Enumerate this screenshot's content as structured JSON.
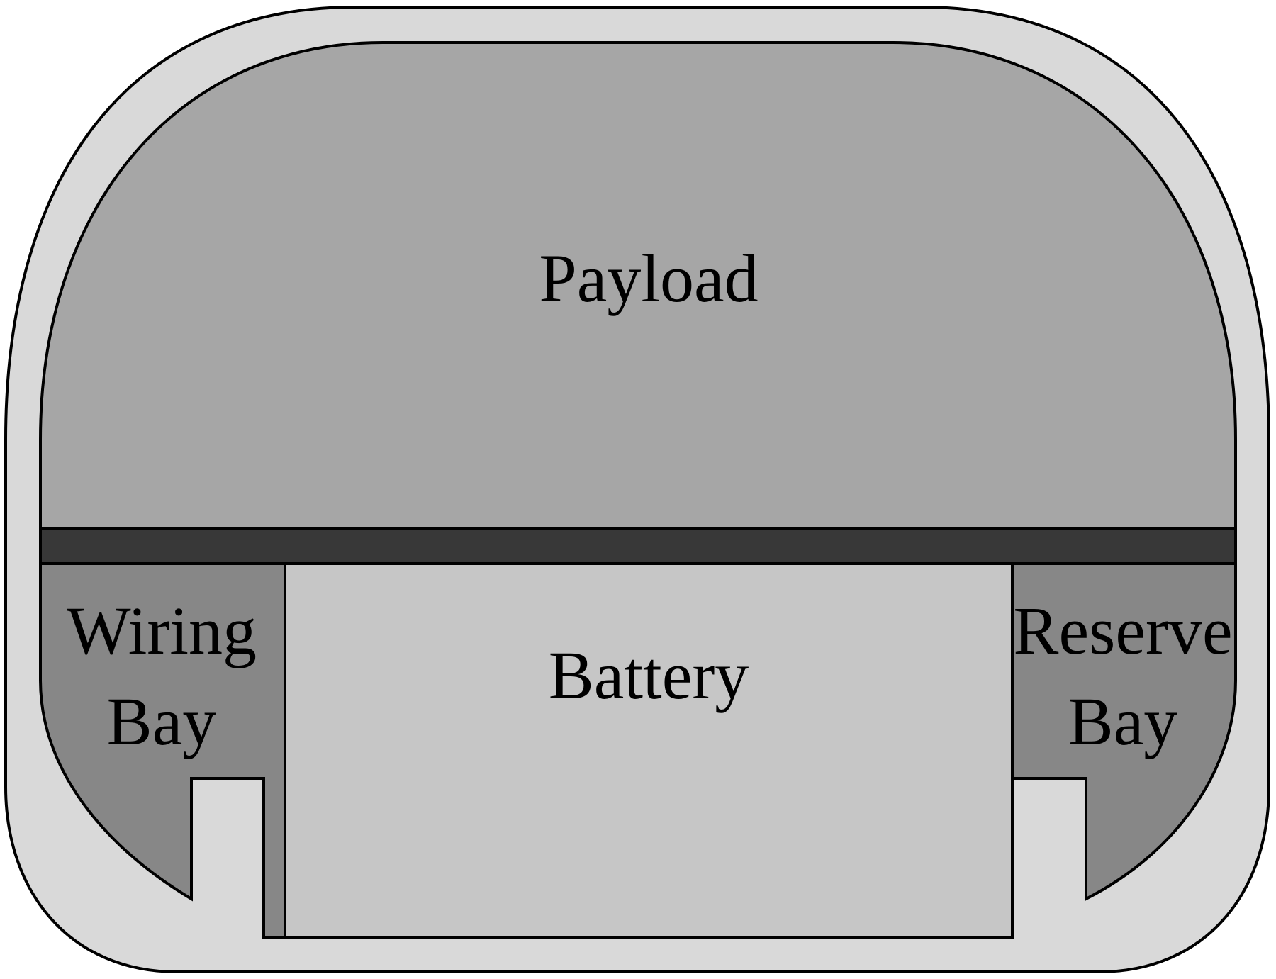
{
  "colors": {
    "hull": "#d9d9d9",
    "payload": "#a6a6a6",
    "divider": "#383838",
    "side_bay": "#878787",
    "battery": "#c6c6c6",
    "outline": "#000000"
  },
  "regions": {
    "payload": {
      "label": "Payload"
    },
    "battery": {
      "label": "Battery"
    },
    "wiring_bay": {
      "line1": "Wiring",
      "line2": "Bay"
    },
    "reserve_bay": {
      "line1": "Reserve",
      "line2": "Bay"
    }
  }
}
